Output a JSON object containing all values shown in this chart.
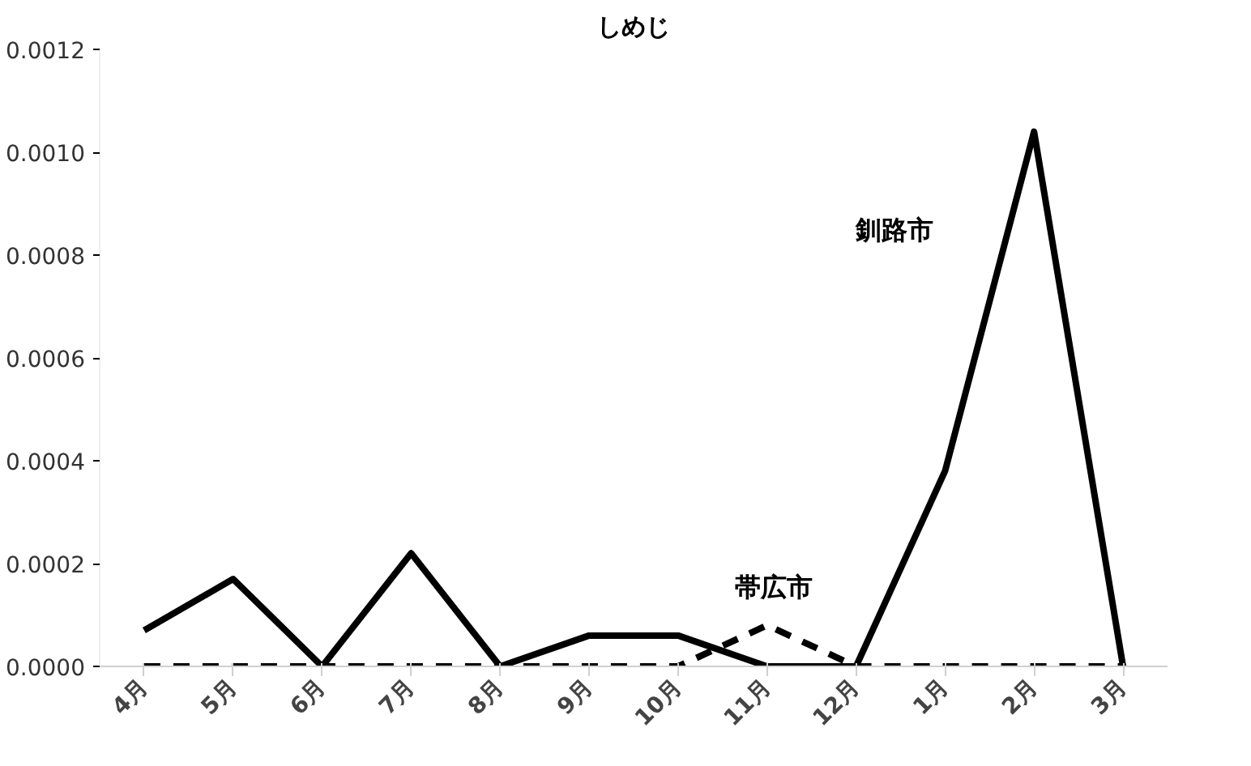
{
  "chart_data": {
    "type": "line",
    "title": "しめじ",
    "categories": [
      "4月",
      "5月",
      "6月",
      "7月",
      "8月",
      "9月",
      "10月",
      "11月",
      "12月",
      "1月",
      "2月",
      "3月"
    ],
    "series": [
      {
        "name": "釧路市",
        "color": "#000000",
        "line_style": "solid",
        "values": [
          7e-05,
          0.00017,
          0.0,
          0.00022,
          0.0,
          6e-05,
          6e-05,
          0.0,
          0.0,
          0.00038,
          0.00104,
          0.0
        ]
      },
      {
        "name": "帯広市",
        "color": "#000000",
        "line_style": "dashed",
        "values": [
          0.0,
          0.0,
          0.0,
          0.0,
          0.0,
          0.0,
          0.0,
          8e-05,
          0.0,
          0.0,
          0.0,
          0.0
        ]
      }
    ],
    "ylim": [
      0,
      0.0012
    ],
    "yticks": [
      {
        "value": 0,
        "label": "0.0000"
      },
      {
        "value": 0.0002,
        "label": "0.0002"
      },
      {
        "value": 0.0004,
        "label": "0.0004"
      },
      {
        "value": 0.0006,
        "label": "0.0006"
      },
      {
        "value": 0.0008,
        "label": "0.0008"
      },
      {
        "value": 0.001,
        "label": "0.0010"
      },
      {
        "value": 0.0012,
        "label": "0.0012"
      }
    ],
    "grid": false
  }
}
